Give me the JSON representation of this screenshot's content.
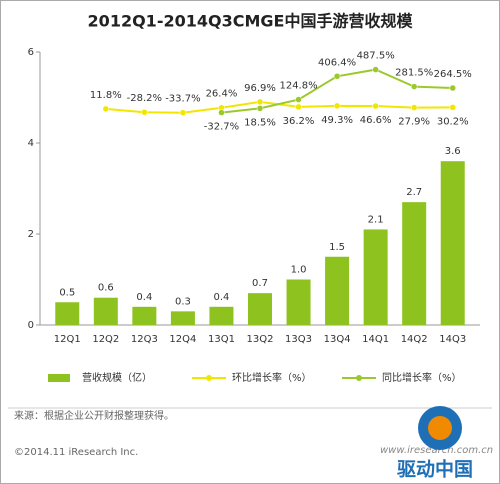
{
  "chart_data": {
    "type": "bar",
    "title": "2012Q1-2014Q3CMGE中国手游营收规模",
    "categories": [
      "12Q1",
      "12Q2",
      "12Q3",
      "12Q4",
      "13Q1",
      "13Q2",
      "13Q3",
      "13Q4",
      "14Q1",
      "14Q2",
      "14Q3"
    ],
    "series": [
      {
        "name": "营收规模（亿）",
        "type": "bar",
        "color": "#8dc21f",
        "values": [
          0.5,
          0.6,
          0.4,
          0.3,
          0.4,
          0.7,
          1.0,
          1.5,
          2.1,
          2.7,
          3.6
        ],
        "value_labels": [
          "0.5",
          "0.6",
          "0.4",
          "0.3",
          "0.4",
          "0.7",
          "1.0",
          "1.5",
          "2.1",
          "2.7",
          "3.6"
        ]
      },
      {
        "name": "环比增长率（%）",
        "type": "line",
        "axis": "y2",
        "color": "#f2e600",
        "values": [
          null,
          11.8,
          -28.2,
          -33.7,
          26.4,
          96.9,
          36.2,
          49.3,
          46.6,
          27.9,
          30.2
        ],
        "value_labels": [
          null,
          "11.8%",
          "-28.2%",
          "-33.7%",
          "26.4%",
          "96.9%",
          "36.2%",
          "49.3%",
          "46.6%",
          "27.9%",
          "30.2%"
        ]
      },
      {
        "name": "同比增长率（%）",
        "type": "line",
        "axis": "y2",
        "color": "#9bc92c",
        "values": [
          null,
          null,
          null,
          null,
          -32.7,
          18.5,
          124.8,
          406.4,
          487.5,
          281.5,
          264.5
        ],
        "value_labels": [
          null,
          null,
          null,
          null,
          "-32.7%",
          "18.5%",
          "124.8%",
          "406.4%",
          "487.5%",
          "281.5%",
          "264.5%"
        ]
      }
    ],
    "ylim": [
      0,
      6
    ],
    "yticks": [
      0,
      2,
      4,
      6
    ],
    "y2lim": [
      -2600,
      700
    ],
    "grid": false,
    "source": "来源：根据企业公开财报整理获得。",
    "copyright": "©2014.11 iResearch Inc.",
    "website": "www.iresearch.com.cn",
    "watermark": "驱动中国"
  }
}
